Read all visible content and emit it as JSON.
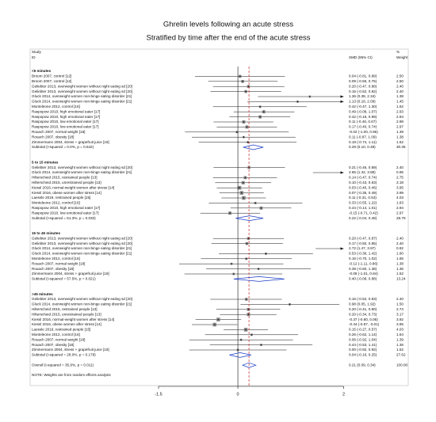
{
  "chart_data": {
    "type": "forest",
    "title": "Ghrelin levels following an acute stress",
    "subtitle": "Stratified by time after the end of the acute stress",
    "study_header": "Study",
    "id_header": "ID",
    "effect_header": "SMD (95% CI)",
    "weight_header_1": "%",
    "weight_header_2": "Weight",
    "xlim": [
      -1.5,
      2
    ],
    "xticks": [
      -1.5,
      0,
      2
    ],
    "box_color": "#8a8a8a",
    "diamond_color": "#1a3cc8",
    "overall_line_color": "#cc2222",
    "groups": [
      {
        "label": "<5 minutes",
        "studies": [
          {
            "name": "Broom 2007, control [12]",
            "value_label": "0.04 (-0.81, 0.89)",
            "smd": 0.04,
            "lo": -0.81,
            "hi": 0.89,
            "weight": 2.5,
            "weight_label": "2.50"
          },
          {
            "name": "Broom 2007, control [12]",
            "value_label": "0.09 (-0.56, 0.75)",
            "smd": 0.09,
            "lo": -0.56,
            "hi": 0.75,
            "weight": 2.5,
            "weight_label": "2.50"
          },
          {
            "name": "Geliebter 2013, overweight women without night eating sd [20]",
            "value_label": "0.20 (-0.47, 0.88)",
            "smd": 0.2,
            "lo": -0.47,
            "hi": 0.88,
            "weight": 2.4,
            "weight_label": "2.40"
          },
          {
            "name": "Geliebter 2013, overweight women without night eating sd [20]",
            "value_label": "0.15 (-0.52, 0.82)",
            "smd": 0.15,
            "lo": -0.52,
            "hi": 0.82,
            "weight": 2.4,
            "weight_label": "2.40"
          },
          {
            "name": "Gluck 2014, overweight women non-binge eating disorder [21]",
            "value_label": "1.36 (0.38, 2.34)",
            "smd": 1.36,
            "lo": 0.38,
            "hi": 2.34,
            "weight": 1.38,
            "weight_label": "1.38"
          },
          {
            "name": "Gluck 2014, overweight women non-binge eating disorder [21]",
            "value_label": "1.13 (0.18, 2.09)",
            "smd": 1.13,
            "lo": 0.18,
            "hi": 2.09,
            "weight": 1.45,
            "weight_label": "1.45"
          },
          {
            "name": "Monteleone 2012, control [16]",
            "value_label": "0.42 (-0.47, 1.30)",
            "smd": 0.42,
            "lo": -0.47,
            "hi": 1.3,
            "weight": 1.62,
            "weight_label": "1.62"
          },
          {
            "name": "Raspopow 2010, high emotional eater [17]",
            "value_label": "0.49 (-0.08, 1.07)",
            "smd": 0.49,
            "lo": -0.08,
            "hi": 1.07,
            "weight": 2.93,
            "weight_label": "2.93"
          },
          {
            "name": "Raspopow 2010, high emotional eater [17]",
            "value_label": "0.42 (-0.16, 0.99)",
            "smd": 0.42,
            "lo": -0.16,
            "hi": 0.99,
            "weight": 2.94,
            "weight_label": "2.94"
          },
          {
            "name": "Raspopow 2010, low emotional eater [17]",
            "value_label": "0.11 (-0.46, 0.67)",
            "smd": 0.11,
            "lo": -0.46,
            "hi": 0.67,
            "weight": 2.98,
            "weight_label": "2.98"
          },
          {
            "name": "Raspopow 2010, low emotional eater [17]",
            "value_label": "0.17 (-0.40, 0.74)",
            "smd": 0.17,
            "lo": -0.4,
            "hi": 0.74,
            "weight": 2.97,
            "weight_label": "2.97"
          },
          {
            "name": "Rouach 2007, normal weight [18]",
            "value_label": "-0.02 (-1.00, 0.96)",
            "smd": -0.02,
            "lo": -1,
            "hi": 0.96,
            "weight": 1.39,
            "weight_label": "1.39"
          },
          {
            "name": "Rouach 2007, obesity [18]",
            "value_label": "0.11 (-0.87, 1.09)",
            "smd": 0.11,
            "lo": -0.87,
            "hi": 1.09,
            "weight": 1.38,
            "weight_label": "1.38"
          },
          {
            "name": "Zimmermann 2004, stress + grapefruit juice [19]",
            "value_label": "0.19 (-0.74, 1.11)",
            "smd": 0.19,
            "lo": -0.74,
            "hi": 1.11,
            "weight": 1.52,
            "weight_label": "1.52"
          }
        ],
        "subtotal": {
          "label": "Subtotal  (I-squared = 0.0%, p = 0.642)",
          "value_label": "0.29 (0.10, 0.48)",
          "smd": 0.29,
          "lo": 0.1,
          "hi": 0.48,
          "weight_label": "30.35"
        }
      },
      {
        "label": "5 to 15 minutes",
        "studies": [
          {
            "name": "Geliebter 2013, overweight women without night eating sd [20]",
            "value_label": "0.21 (-0.46, 0.89)",
            "smd": 0.21,
            "lo": -0.46,
            "hi": 0.89,
            "weight": 2.4,
            "weight_label": "2.40"
          },
          {
            "name": "Gluck 2014, overweight women non-binge eating disorder [21]",
            "value_label": "2.65 (1.42, 3.88)",
            "smd": 2.65,
            "lo": 1.42,
            "hi": 3.88,
            "weight": 0.95,
            "weight_label": "0.95"
          },
          {
            "name": "Hilterscheid 2015, restrained people [13]",
            "value_label": "0.14 (-0.47, 0.74)",
            "smd": 0.14,
            "lo": -0.47,
            "hi": 0.74,
            "weight": 2.75,
            "weight_label": "2.75"
          },
          {
            "name": "Hilterscheid 2015, unrestrained people [13]",
            "value_label": "0.10 (-0.43, 0.63)",
            "smd": 0.1,
            "lo": -0.43,
            "hi": 0.63,
            "weight": 3.18,
            "weight_label": "3.18"
          },
          {
            "name": "Kiessl 2016, normal-weight women after stress [14]",
            "value_label": "0.03 (-0.40, 0.46)",
            "smd": 0.03,
            "lo": -0.4,
            "hi": 0.46,
            "weight": 3.95,
            "weight_label": "3.95"
          },
          {
            "name": "Kiessl 2016, obese women after stress [14]",
            "value_label": "0.07 (-0.35, 0.49)",
            "smd": 0.07,
            "lo": -0.35,
            "hi": 0.49,
            "weight": 3.99,
            "weight_label": "3.99"
          },
          {
            "name": "Laessle 2019, restrained people [15]",
            "value_label": "0.11 (-0.31, 0.53)",
            "smd": 0.11,
            "lo": -0.31,
            "hi": 0.53,
            "weight": 4.03,
            "weight_label": "4.03"
          },
          {
            "name": "Monteleone 2012, control [16]",
            "value_label": "0.33 (-0.55, 1.22)",
            "smd": 0.33,
            "lo": -0.55,
            "hi": 1.22,
            "weight": 1.63,
            "weight_label": "1.63"
          },
          {
            "name": "Raspopow 2010, high emotional eater [17]",
            "value_label": "0.44 (-0.14, 1.01)",
            "smd": 0.44,
            "lo": -0.14,
            "hi": 1.01,
            "weight": 2.94,
            "weight_label": "2.94"
          },
          {
            "name": "Raspopow 2010, low emotional eater [17]",
            "value_label": "-0.15 (-0.71, 0.42)",
            "smd": -0.15,
            "lo": -0.71,
            "hi": 0.42,
            "weight": 2.97,
            "weight_label": "2.97"
          }
        ],
        "subtotal": {
          "label": "Subtotal  (I-squared = 51.3%, p = 0.030)",
          "value_label": "0.22 (-0.04, 0.48)",
          "smd": 0.22,
          "lo": -0.04,
          "hi": 0.48,
          "weight_label": "28.79"
        }
      },
      {
        "label": "15 to 45 minutes",
        "studies": [
          {
            "name": "Geliebter 2013, overweight women without night eating sd [20]",
            "value_label": "0.20 (-0.47, 0.87)",
            "smd": 0.2,
            "lo": -0.47,
            "hi": 0.87,
            "weight": 2.4,
            "weight_label": "2.40"
          },
          {
            "name": "Geliebter 2013, overweight women without night eating sd [20]",
            "value_label": "0.17 (-0.50, 0.85)",
            "smd": 0.17,
            "lo": -0.5,
            "hi": 0.85,
            "weight": 2.4,
            "weight_label": "2.40"
          },
          {
            "name": "Gluck 2014, overweight women non-binge eating disorder [21]",
            "value_label": "2.72 (1.47, 3.97)",
            "smd": 2.72,
            "lo": 1.47,
            "hi": 3.97,
            "weight": 0.92,
            "weight_label": "0.92"
          },
          {
            "name": "Gluck 2014, overweight women non-binge eating disorder [21]",
            "value_label": "0.53 (-0.36, 1.42)",
            "smd": 0.53,
            "lo": -0.36,
            "hi": 1.42,
            "weight": 1.6,
            "weight_label": "1.60"
          },
          {
            "name": "Monteleone 2012, control [16]",
            "value_label": "0.16 (-0.70, 1.02)",
            "smd": 0.16,
            "lo": -0.7,
            "hi": 1.02,
            "weight": 1.65,
            "weight_label": "1.65"
          },
          {
            "name": "Rouach 2007, normal weight [18]",
            "value_label": "-0.12 (-1.11, 0.86)",
            "smd": -0.12,
            "lo": -1.11,
            "hi": 0.86,
            "weight": 1.38,
            "weight_label": "1.38"
          },
          {
            "name": "Rouach 2007, obesity [18]",
            "value_label": "0.39 (-0.60, 1.38)",
            "smd": 0.39,
            "lo": -0.6,
            "hi": 1.38,
            "weight": 1.36,
            "weight_label": "1.36"
          },
          {
            "name": "Zimmermann 2004, stress + grapefruit juice [19]",
            "value_label": "-0.08 (-1.01, 0.84)",
            "smd": -0.08,
            "lo": -1.01,
            "hi": 0.84,
            "weight": 1.52,
            "weight_label": "1.52"
          }
        ],
        "subtotal": {
          "label": "Subtotal  (I-squared = 57.5%, p = 0.021)",
          "value_label": "0.40 (-0.08, 0.88)",
          "smd": 0.4,
          "lo": -0.08,
          "hi": 0.88,
          "weight_label": "13.24"
        }
      },
      {
        "label": ">45 minutes",
        "studies": [
          {
            "name": "Geliebter 2013, overweight women without night eating sd [20]",
            "value_label": "0.16 (-0.52, 0.83)",
            "smd": 0.16,
            "lo": -0.52,
            "hi": 0.83,
            "weight": 2.4,
            "weight_label": "2.40"
          },
          {
            "name": "Gluck 2014, overweight women non-binge eating disorder [21]",
            "value_label": "0.98 (0.05, 1.92)",
            "smd": 0.98,
            "lo": 0.05,
            "hi": 1.92,
            "weight": 1.5,
            "weight_label": "1.50"
          },
          {
            "name": "Hilterscheid 2015, restrained people [13]",
            "value_label": "0.20 (-0.41, 0.80)",
            "smd": 0.2,
            "lo": -0.41,
            "hi": 0.8,
            "weight": 2.74,
            "weight_label": "2.74"
          },
          {
            "name": "Hilterscheid 2015, unrestrained people [13]",
            "value_label": "0.20 (-0.34, 0.73)",
            "smd": 0.2,
            "lo": -0.34,
            "hi": 0.73,
            "weight": 3.17,
            "weight_label": "3.17"
          },
          {
            "name": "Kiessl 2016, normal-weight women after stress [14]",
            "value_label": "-0.37 (-0.80, 0.06)",
            "smd": -0.37,
            "lo": -0.8,
            "hi": 0.06,
            "weight": 3.92,
            "weight_label": "3.92"
          },
          {
            "name": "Kiessl 2016, obese women after stress [14]",
            "value_label": "-0.44 (-0.87, -0.01)",
            "smd": -0.44,
            "lo": -0.87,
            "hi": -0.01,
            "weight": 3.95,
            "weight_label": "3.95"
          },
          {
            "name": "Laessle 2019, restrained people [15]",
            "value_label": "0.15 (-0.27, 0.57)",
            "smd": 0.15,
            "lo": -0.27,
            "hi": 0.57,
            "weight": 4.03,
            "weight_label": "4.03"
          },
          {
            "name": "Monteleone 2012, control [16]",
            "value_label": "0.26 (-0.62, 1.14)",
            "smd": 0.26,
            "lo": -0.62,
            "hi": 1.14,
            "weight": 1.64,
            "weight_label": "1.64"
          },
          {
            "name": "Rouach 2007, normal weight [18]",
            "value_label": "0.06 (-0.92, 1.04)",
            "smd": 0.06,
            "lo": -0.92,
            "hi": 1.04,
            "weight": 1.39,
            "weight_label": "1.39"
          },
          {
            "name": "Rouach 2007, obesity [18]",
            "value_label": "0.44 (-0.53, 1.41)",
            "smd": 0.44,
            "lo": -0.53,
            "hi": 1.41,
            "weight": 1.36,
            "weight_label": "1.36"
          },
          {
            "name": "Zimmermann 2004, stress + grapefruit juice [19]",
            "value_label": "0.00 (-0.92, 0.92)",
            "smd": 0,
            "lo": -0.92,
            "hi": 0.92,
            "weight": 1.52,
            "weight_label": "1.52"
          }
        ],
        "subtotal": {
          "label": "Subtotal  (I-squared = 28.0%, p = 0.178)",
          "value_label": "0.04 (-0.16, 0.25)",
          "smd": 0.04,
          "lo": -0.16,
          "hi": 0.25,
          "weight_label": "27.62"
        }
      }
    ],
    "overall": {
      "label": "Overall  (I-squared = 35.9%, p = 0.011)",
      "value_label": "0.21 (0.09, 0.34)",
      "smd": 0.21,
      "lo": 0.09,
      "hi": 0.34,
      "weight_label": "100.00"
    },
    "note": "NOTE: Weights are from random effects analysis"
  }
}
